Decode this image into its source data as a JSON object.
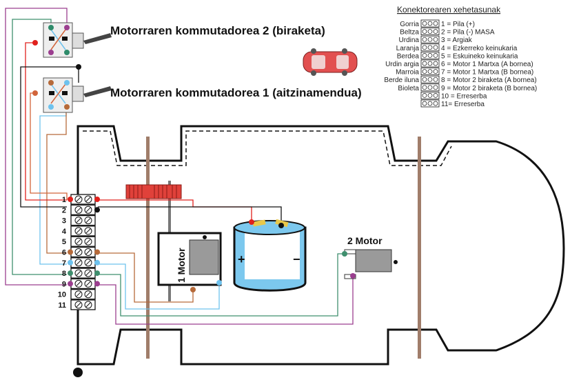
{
  "switch2_label": "Motorraren kommutadorea 2 (biraketa)",
  "switch1_label": "Motorraren kommutadorea 1 (aitzinamendua)",
  "legend": {
    "title": "Konektorearen xehetasunak",
    "rows": [
      {
        "color_name": "Gorria",
        "desc": "1 = Pila (+)"
      },
      {
        "color_name": "Beltza",
        "desc": "2 = Pila (-) MASA"
      },
      {
        "color_name": "Urdina",
        "desc": "3 = Argiak"
      },
      {
        "color_name": "Laranja",
        "desc": "4 = Ezkerreko keinukaria"
      },
      {
        "color_name": "Berdea",
        "desc": "5 = Eskuineko keinukaria"
      },
      {
        "color_name": "Urdin argia",
        "desc": "6 = Motor 1 Martxa (A bornea)"
      },
      {
        "color_name": "Marroia",
        "desc": "7 = Motor 1 Martxa (B bornea)"
      },
      {
        "color_name": "Berde iluna",
        "desc": "8 = Motor 2 biraketa (A bornea)"
      },
      {
        "color_name": "Bioleta",
        "desc": "9 = Motor 2 biraketa (B bornea)"
      },
      {
        "color_name": "",
        "desc": "10 = Erreserba"
      },
      {
        "color_name": "",
        "desc": "11= Erreserba"
      }
    ]
  },
  "terminals": [
    "1",
    "2",
    "3",
    "4",
    "5",
    "6",
    "7",
    "8",
    "9",
    "10",
    "11"
  ],
  "motor1_label": "1 Motor",
  "motor2_label": "2  Motor",
  "battery": {
    "plus": "+",
    "minus": "−"
  },
  "colors": {
    "red": "#e0201c",
    "black": "#111111",
    "orange": "#c0643a",
    "green": "#2e8b6a",
    "lightblue": "#6ec2ee",
    "brown": "#b66a3a",
    "darkgreen": "#3f8f6e",
    "violet": "#9b3e8f",
    "gear": "#e0413a",
    "battery_fill": "#7cc8ee",
    "axle": "#a07d6a"
  }
}
